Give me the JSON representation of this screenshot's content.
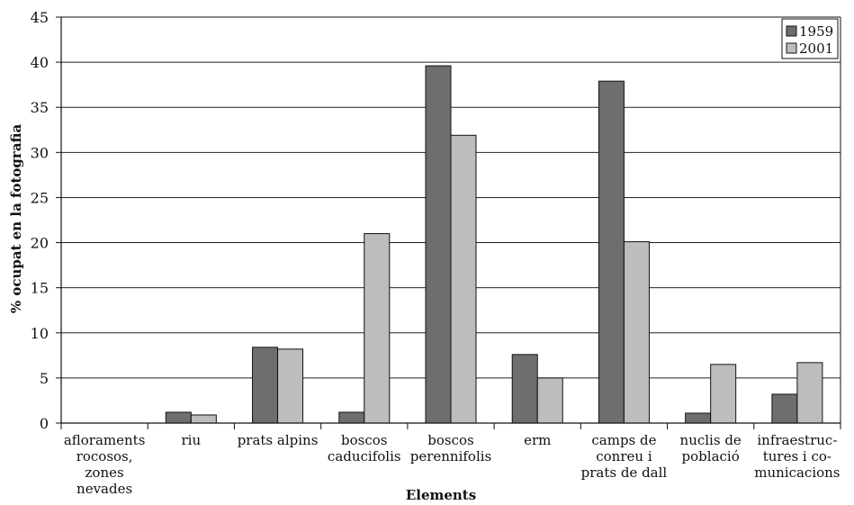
{
  "chart_data": {
    "type": "bar",
    "title": "",
    "xlabel": "Elements",
    "ylabel": "% ocupat en la fotografia",
    "ylim": [
      0,
      45
    ],
    "yticks": [
      0,
      5,
      10,
      15,
      20,
      25,
      30,
      35,
      40,
      45
    ],
    "grid": true,
    "legend_position": "top-right",
    "categories": [
      [
        "aflo­raments",
        "rocosos,",
        "zones",
        "nevades"
      ],
      [
        "riu"
      ],
      [
        "prats alpins"
      ],
      [
        "boscos",
        "caducifolis"
      ],
      [
        "boscos",
        "perennifolis"
      ],
      [
        "erm"
      ],
      [
        "camps de",
        "conreu i",
        "prats de dall"
      ],
      [
        "nuclis de",
        "població"
      ],
      [
        "infraestruc-",
        "tures i co-",
        "municacions"
      ]
    ],
    "series": [
      {
        "name": "1959",
        "color": "#6e6e6e",
        "values": [
          0,
          1.2,
          8.4,
          1.2,
          39.6,
          7.6,
          37.9,
          1.1,
          3.2
        ]
      },
      {
        "name": "2001",
        "color": "#bdbdbd",
        "values": [
          0,
          0.9,
          8.2,
          21.0,
          31.9,
          5.0,
          20.1,
          6.5,
          6.7
        ]
      }
    ]
  }
}
